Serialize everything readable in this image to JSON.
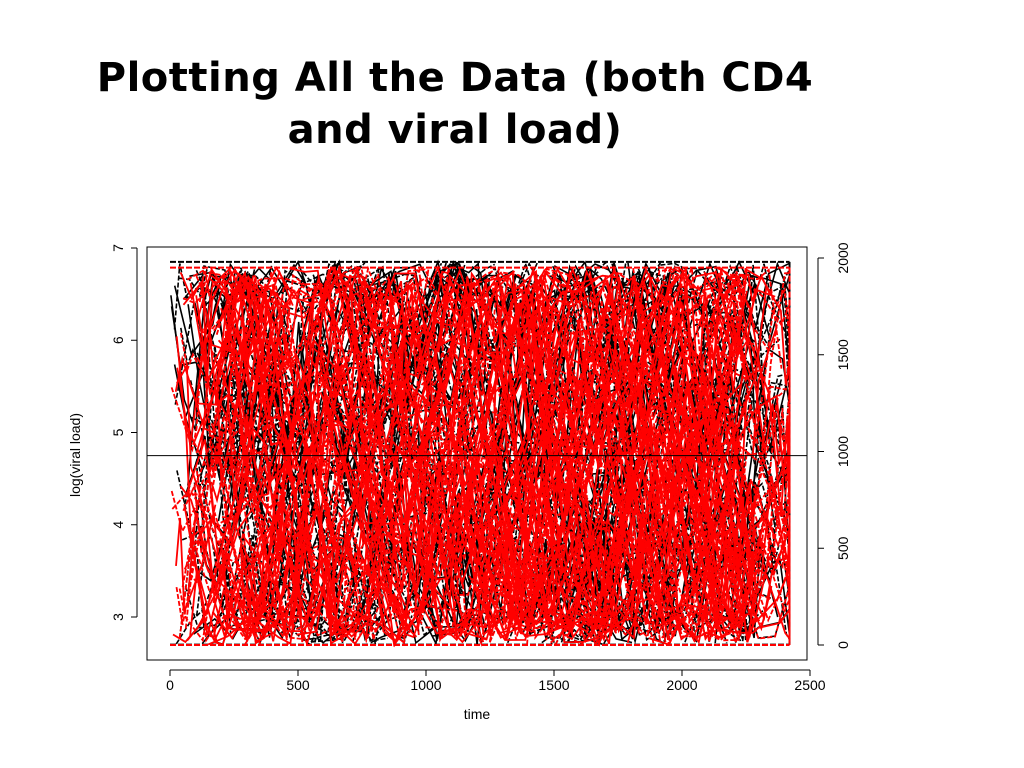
{
  "slide": {
    "title_line1": "Plotting All the Data (both CD4",
    "title_line2": "and viral load)"
  },
  "chart_data": {
    "type": "line",
    "title": "",
    "xlabel": "time",
    "ylabel": "log(viral load)",
    "y2label": "",
    "xlim": [
      0,
      2500
    ],
    "ylim": [
      3,
      7
    ],
    "y2lim": [
      0,
      2000
    ],
    "x_ticks": [
      0,
      500,
      1000,
      1500,
      2000,
      2500
    ],
    "y_ticks": [
      3,
      4,
      5,
      6,
      7
    ],
    "y2_ticks": [
      0,
      500,
      1000,
      1500,
      2000
    ],
    "x_tick_labels": [
      "0",
      "500",
      "1000",
      "1500",
      "2000",
      "2500"
    ],
    "y_tick_labels": [
      "3",
      "4",
      "5",
      "6",
      "7"
    ],
    "y2_tick_labels": [
      "0",
      "500",
      "1000",
      "1500",
      "2000"
    ],
    "grid": false,
    "series": [
      {
        "axis": "left",
        "color": "#000000",
        "description": "many overlapping per-subject trajectories, dense black",
        "x_range": [
          0,
          2420
        ],
        "y_range": [
          2.7,
          6.85
        ]
      },
      {
        "axis": "right",
        "color": "#ff0000",
        "description": "many overlapping per-subject trajectories, dense red",
        "x_range": [
          0,
          2420
        ],
        "y_range": [
          0,
          1950
        ]
      }
    ],
    "reference_line": {
      "axis": "left",
      "y": 4.75,
      "color": "#000000"
    }
  }
}
